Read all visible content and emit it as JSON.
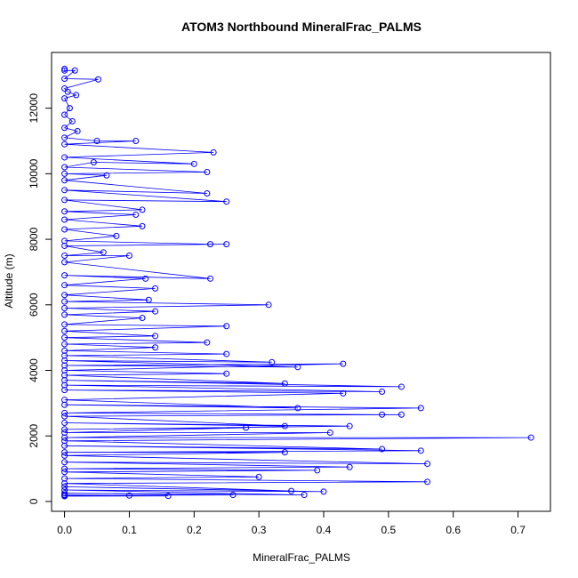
{
  "chart_data": {
    "type": "scatter",
    "title": "ATOM3 Northbound MineralFrac_PALMS",
    "xlabel": "MineralFrac_PALMS",
    "ylabel": "Altitude (m)",
    "xlim": [
      -0.02,
      0.75
    ],
    "ylim": [
      -300,
      13700
    ],
    "xticks": [
      0.0,
      0.1,
      0.2,
      0.3,
      0.4,
      0.5,
      0.6,
      0.7
    ],
    "xtick_labels": [
      "0.0",
      "0.1",
      "0.2",
      "0.3",
      "0.4",
      "0.5",
      "0.6",
      "0.7"
    ],
    "yticks": [
      0,
      2000,
      4000,
      6000,
      8000,
      10000,
      12000
    ],
    "ytick_labels": [
      "0",
      "2000",
      "4000",
      "6000",
      "8000",
      "10000",
      "12000"
    ],
    "grid": false,
    "style": "points connected by lines, open circle markers",
    "color": "#0000ff",
    "series": [
      {
        "points": [
          [
            0.0,
            13200
          ],
          [
            0.0,
            13150
          ],
          [
            0.016,
            13150
          ],
          [
            0.0,
            12900
          ],
          [
            0.052,
            12880
          ],
          [
            0.0,
            12600
          ],
          [
            0.005,
            12500
          ],
          [
            0.018,
            12400
          ],
          [
            0.0,
            12300
          ],
          [
            0.008,
            12000
          ],
          [
            0.0,
            11800
          ],
          [
            0.012,
            11600
          ],
          [
            0.0,
            11400
          ],
          [
            0.02,
            11300
          ],
          [
            0.0,
            11100
          ],
          [
            0.05,
            11000
          ],
          [
            0.11,
            11000
          ],
          [
            0.0,
            10900
          ],
          [
            0.23,
            10650
          ],
          [
            0.0,
            10500
          ],
          [
            0.2,
            10300
          ],
          [
            0.045,
            10350
          ],
          [
            0.0,
            10200
          ],
          [
            0.22,
            10050
          ],
          [
            0.0,
            10000
          ],
          [
            0.065,
            9950
          ],
          [
            0.0,
            9800
          ],
          [
            0.22,
            9400
          ],
          [
            0.0,
            9500
          ],
          [
            0.25,
            9150
          ],
          [
            0.0,
            9200
          ],
          [
            0.12,
            8900
          ],
          [
            0.0,
            8850
          ],
          [
            0.11,
            8750
          ],
          [
            0.0,
            8600
          ],
          [
            0.12,
            8400
          ],
          [
            0.0,
            8300
          ],
          [
            0.08,
            8100
          ],
          [
            0.0,
            7950
          ],
          [
            0.225,
            7850
          ],
          [
            0.25,
            7850
          ],
          [
            0.0,
            7800
          ],
          [
            0.06,
            7600
          ],
          [
            0.0,
            7500
          ],
          [
            0.1,
            7500
          ],
          [
            0.0,
            7300
          ],
          [
            0.225,
            6800
          ],
          [
            0.0,
            6900
          ],
          [
            0.125,
            6800
          ],
          [
            0.0,
            6600
          ],
          [
            0.14,
            6500
          ],
          [
            0.0,
            6300
          ],
          [
            0.13,
            6150
          ],
          [
            0.0,
            6100
          ],
          [
            0.315,
            6000
          ],
          [
            0.0,
            5900
          ],
          [
            0.14,
            5800
          ],
          [
            0.0,
            5700
          ],
          [
            0.12,
            5600
          ],
          [
            0.0,
            5400
          ],
          [
            0.25,
            5350
          ],
          [
            0.0,
            5200
          ],
          [
            0.14,
            5050
          ],
          [
            0.0,
            5000
          ],
          [
            0.22,
            4850
          ],
          [
            0.0,
            4800
          ],
          [
            0.14,
            4700
          ],
          [
            0.0,
            4600
          ],
          [
            0.25,
            4500
          ],
          [
            0.0,
            4450
          ],
          [
            0.32,
            4250
          ],
          [
            0.0,
            4300
          ],
          [
            0.36,
            4100
          ],
          [
            0.0,
            4150
          ],
          [
            0.43,
            4200
          ],
          [
            0.0,
            4000
          ],
          [
            0.25,
            3900
          ],
          [
            0.0,
            3850
          ],
          [
            0.34,
            3600
          ],
          [
            0.0,
            3700
          ],
          [
            0.52,
            3500
          ],
          [
            0.0,
            3550
          ],
          [
            0.49,
            3350
          ],
          [
            0.0,
            3400
          ],
          [
            0.43,
            3300
          ],
          [
            0.0,
            3100
          ],
          [
            0.36,
            2850
          ],
          [
            0.0,
            2950
          ],
          [
            0.55,
            2850
          ],
          [
            0.0,
            2700
          ],
          [
            0.49,
            2650
          ],
          [
            0.52,
            2650
          ],
          [
            0.0,
            2600
          ],
          [
            0.34,
            2300
          ],
          [
            0.0,
            2400
          ],
          [
            0.44,
            2300
          ],
          [
            0.0,
            2200
          ],
          [
            0.28,
            2250
          ],
          [
            0.0,
            2100
          ],
          [
            0.41,
            2100
          ],
          [
            0.0,
            1950
          ],
          [
            0.72,
            1950
          ],
          [
            0.0,
            1850
          ],
          [
            0.49,
            1600
          ],
          [
            0.0,
            1700
          ],
          [
            0.55,
            1550
          ],
          [
            0.0,
            1500
          ],
          [
            0.34,
            1500
          ],
          [
            0.0,
            1400
          ],
          [
            0.56,
            1150
          ],
          [
            0.0,
            1200
          ],
          [
            0.44,
            1050
          ],
          [
            0.0,
            1000
          ],
          [
            0.39,
            950
          ],
          [
            0.0,
            900
          ],
          [
            0.3,
            750
          ],
          [
            0.0,
            700
          ],
          [
            0.56,
            600
          ],
          [
            0.0,
            550
          ],
          [
            0.35,
            320
          ],
          [
            0.0,
            450
          ],
          [
            0.4,
            300
          ],
          [
            0.0,
            350
          ],
          [
            0.37,
            200
          ],
          [
            0.0,
            250
          ],
          [
            0.26,
            200
          ],
          [
            0.0,
            180
          ],
          [
            0.16,
            170
          ],
          [
            0.0,
            160
          ],
          [
            0.1,
            180
          ],
          [
            0.0,
            200
          ]
        ]
      }
    ]
  }
}
